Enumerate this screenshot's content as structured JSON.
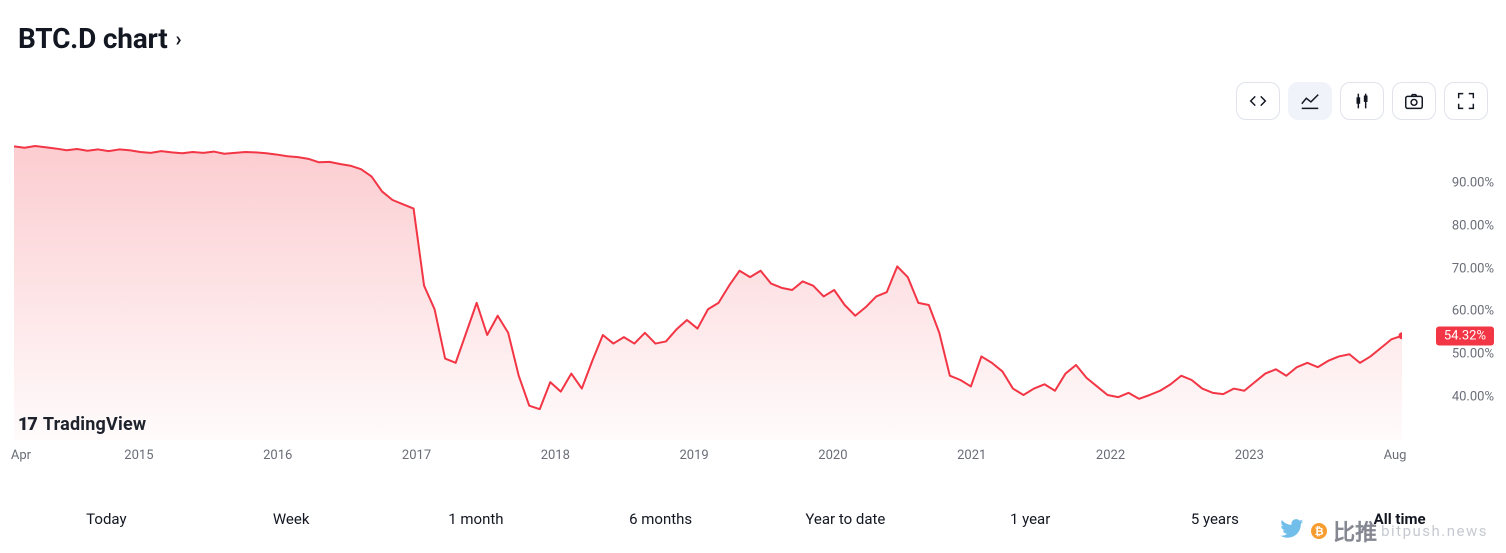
{
  "header": {
    "title": "BTC.D chart",
    "chevron": "›"
  },
  "toolbar": {
    "buttons": [
      {
        "name": "code-button",
        "icon": "code",
        "active": false
      },
      {
        "name": "area-chart-button",
        "icon": "area",
        "active": true
      },
      {
        "name": "candles-button",
        "icon": "candles",
        "active": false
      },
      {
        "name": "snapshot-button",
        "icon": "camera",
        "active": false
      },
      {
        "name": "fullscreen-button",
        "icon": "fullscreen",
        "active": false
      }
    ]
  },
  "chart": {
    "type": "area",
    "line_color": "#f23645",
    "line_width": 2,
    "fill_top_color": "rgba(242,54,69,0.25)",
    "fill_bottom_color": "rgba(242,54,69,0.02)",
    "background_color": "#ffffff",
    "grid_color": "#ffffff",
    "y": {
      "min": 30,
      "max": 100,
      "ticks": [
        40,
        50,
        60,
        70,
        80,
        90
      ],
      "tick_suffix": ".00%"
    },
    "x": {
      "start_label": "Apr",
      "end_label": "Aug",
      "year_ticks": [
        "2015",
        "2016",
        "2017",
        "2018",
        "2019",
        "2020",
        "2021",
        "2022",
        "2023"
      ]
    },
    "current": {
      "value": 54.32,
      "label": "54.32%"
    },
    "series_pct": [
      98.5,
      98.2,
      98.6,
      98.3,
      98.0,
      97.6,
      97.9,
      97.5,
      97.8,
      97.4,
      97.8,
      97.6,
      97.2,
      97.0,
      97.4,
      97.1,
      96.9,
      97.2,
      97.0,
      97.3,
      96.8,
      97.0,
      97.2,
      97.1,
      96.9,
      96.6,
      96.2,
      96.0,
      95.6,
      94.8,
      94.9,
      94.4,
      94.0,
      93.2,
      91.5,
      88.0,
      86.0,
      85.0,
      84.0,
      66.0,
      60.5,
      49.0,
      48.0,
      55.0,
      62.0,
      54.5,
      59.0,
      55.0,
      45.0,
      38.0,
      37.2,
      43.5,
      41.3,
      45.5,
      42.0,
      48.5,
      54.5,
      52.5,
      54.0,
      52.5,
      55.0,
      52.5,
      53.0,
      55.8,
      58.0,
      56.0,
      60.5,
      62.0,
      66.0,
      69.5,
      68.0,
      69.5,
      66.5,
      65.5,
      65.0,
      67.0,
      66.0,
      63.5,
      65.0,
      61.5,
      59.0,
      61.0,
      63.5,
      64.5,
      70.5,
      68.0,
      62.0,
      61.5,
      55.0,
      45.0,
      44.0,
      42.5,
      49.5,
      48.0,
      46.0,
      42.0,
      40.5,
      42.0,
      43.0,
      41.5,
      45.5,
      47.5,
      44.5,
      42.5,
      40.5,
      40.0,
      41.0,
      39.6,
      40.5,
      41.5,
      43.0,
      45.0,
      44.0,
      42.0,
      41.0,
      40.7,
      42.0,
      41.5,
      43.5,
      45.5,
      46.5,
      45.0,
      47.0,
      48.0,
      47.0,
      48.5,
      49.5,
      50.0,
      48.0,
      49.5,
      51.5,
      53.5,
      54.32
    ],
    "watermark": {
      "logo_text": "17",
      "brand": "TradingView"
    }
  },
  "ranges": {
    "items": [
      "Today",
      "Week",
      "1 month",
      "6 months",
      "Year to date",
      "1 year",
      "5 years",
      "All time"
    ],
    "active_index": 7
  },
  "site_watermark": {
    "cn": "比推",
    "url": "bitpush.news",
    "bird_color": "#62b7e8",
    "coin_glyph": "₿"
  }
}
